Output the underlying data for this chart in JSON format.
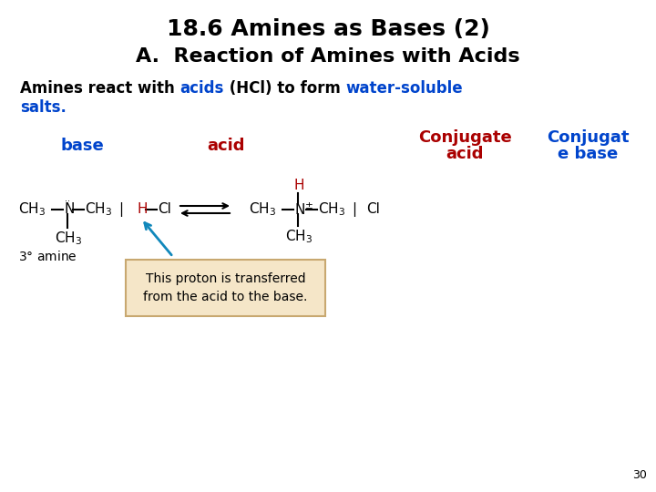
{
  "title_line1": "18.6 Amines as Bases (2)",
  "title_line2": "A.  Reaction of Amines with Acids",
  "title_color": "black",
  "title_fontsize": 18,
  "subtitle_fontsize": 16,
  "body_fontsize": 12,
  "label_fontsize": 13,
  "chem_fontsize": 11,
  "body_line2": "salts.",
  "body_line2_color": "#0044CC",
  "label_base": "base",
  "label_base_color": "#0044CC",
  "label_acid": "acid",
  "label_acid_color": "#AA0000",
  "label_conj_acid_line1": "Conjugate",
  "label_conj_acid_line2": "acid",
  "label_conj_acid_color": "#AA0000",
  "label_conj_base_line1": "Conjugat",
  "label_conj_base_line2": "e base",
  "label_conj_base_color": "#0044CC",
  "background_color": "#ffffff",
  "page_number": "30",
  "box_text_line1": "This proton is transferred",
  "box_text_line2": "from the acid to the base.",
  "box_bg_color": "#F5E6C8",
  "box_edge_color": "#C8A870",
  "blue": "#0044CC",
  "red": "#AA0000",
  "black": "black"
}
